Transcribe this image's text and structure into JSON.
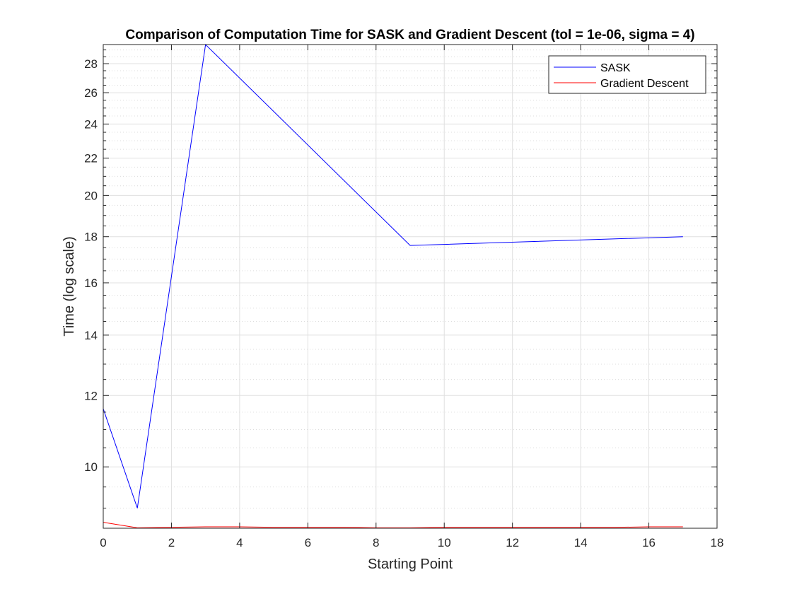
{
  "chart_data": {
    "type": "line",
    "title": "Comparison of Computation Time for SASK and Gradient Descent (tol = 1e-06, sigma = 4)",
    "xlabel": "Starting Point",
    "ylabel": "Time (log scale)",
    "y_scale": "log",
    "xlim": [
      0,
      18
    ],
    "ylim": [
      8.55,
      29.4
    ],
    "x_ticks": [
      0,
      2,
      4,
      6,
      8,
      10,
      12,
      14,
      16,
      18
    ],
    "y_ticks": [
      10,
      12,
      14,
      16,
      18,
      20,
      22,
      24,
      26,
      28
    ],
    "grid": true,
    "minor_grid": true,
    "legend_position": "top-right",
    "series": [
      {
        "name": "SASK",
        "color": "#0000ff",
        "x": [
          0,
          1,
          3,
          9,
          17
        ],
        "y": [
          11.6,
          9.0,
          29.4,
          17.6,
          18.0
        ]
      },
      {
        "name": "Gradient Descent",
        "color": "#ff0000",
        "x": [
          0,
          1,
          2,
          3,
          4,
          5,
          6,
          7,
          8,
          9,
          10,
          11,
          12,
          13,
          14,
          15,
          16,
          17
        ],
        "y": [
          8.68,
          8.56,
          8.57,
          8.58,
          8.58,
          8.57,
          8.57,
          8.57,
          8.56,
          8.56,
          8.57,
          8.57,
          8.57,
          8.57,
          8.57,
          8.57,
          8.58,
          8.58
        ]
      }
    ]
  }
}
